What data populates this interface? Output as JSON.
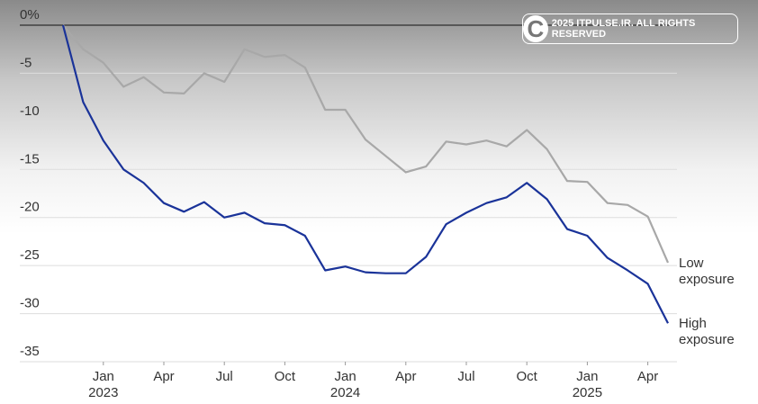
{
  "chart_data": {
    "type": "line",
    "watermark": "2025 ITPULSE.IR. ALL RIGHTS RESERVED",
    "x": [
      "2022-11",
      "2022-12",
      "2023-01",
      "2023-02",
      "2023-03",
      "2023-04",
      "2023-05",
      "2023-06",
      "2023-07",
      "2023-08",
      "2023-09",
      "2023-10",
      "2023-11",
      "2023-12",
      "2024-01",
      "2024-02",
      "2024-03",
      "2024-04",
      "2024-05",
      "2024-06",
      "2024-07",
      "2024-08",
      "2024-09",
      "2024-10",
      "2024-11",
      "2024-12",
      "2025-01",
      "2025-02",
      "2025-03",
      "2025-04",
      "2025-05"
    ],
    "series": [
      {
        "name": "Low exposure",
        "color": "#a8a8a8",
        "values": [
          0,
          -2.5,
          -3.9,
          -6.4,
          -5.4,
          -7.0,
          -7.1,
          -5.0,
          -5.9,
          -2.5,
          -3.3,
          -3.1,
          -4.4,
          -8.8,
          -8.8,
          -11.9,
          -13.6,
          -15.3,
          -14.7,
          -12.1,
          -12.4,
          -12.0,
          -12.6,
          -10.9,
          -12.9,
          -16.2,
          -16.3,
          -18.5,
          -18.7,
          -19.9,
          -24.7
        ]
      },
      {
        "name": "High exposure",
        "color": "#1a3399",
        "values": [
          0,
          -8.0,
          -12.0,
          -15.0,
          -16.4,
          -18.5,
          -19.4,
          -18.4,
          -20.0,
          -19.5,
          -20.6,
          -20.8,
          -21.9,
          -25.5,
          -25.1,
          -25.7,
          -25.8,
          -25.8,
          -24.1,
          -20.7,
          -19.5,
          -18.5,
          -17.9,
          -16.4,
          -18.1,
          -21.2,
          -21.9,
          -24.2,
          -25.5,
          -26.9,
          -31.0
        ]
      }
    ],
    "ylim": [
      -35,
      0
    ],
    "yticks": [
      {
        "value": 0,
        "label": "0%"
      },
      -5,
      -10,
      -15,
      -20,
      -25,
      -30,
      -35
    ],
    "xticks": [
      {
        "value": "2023-01",
        "label": "Jan 2023"
      },
      {
        "value": "2023-04",
        "label": "Apr"
      },
      {
        "value": "2023-07",
        "label": "Jul"
      },
      {
        "value": "2023-10",
        "label": "Oct"
      },
      {
        "value": "2024-01",
        "label": "Jan 2024"
      },
      {
        "value": "2024-04",
        "label": "Apr"
      },
      {
        "value": "2024-07",
        "label": "Jul"
      },
      {
        "value": "2024-10",
        "label": "Oct"
      },
      {
        "value": "2025-01",
        "label": "Jan 2025"
      },
      {
        "value": "2025-04",
        "label": "Apr"
      }
    ],
    "grid": true
  }
}
